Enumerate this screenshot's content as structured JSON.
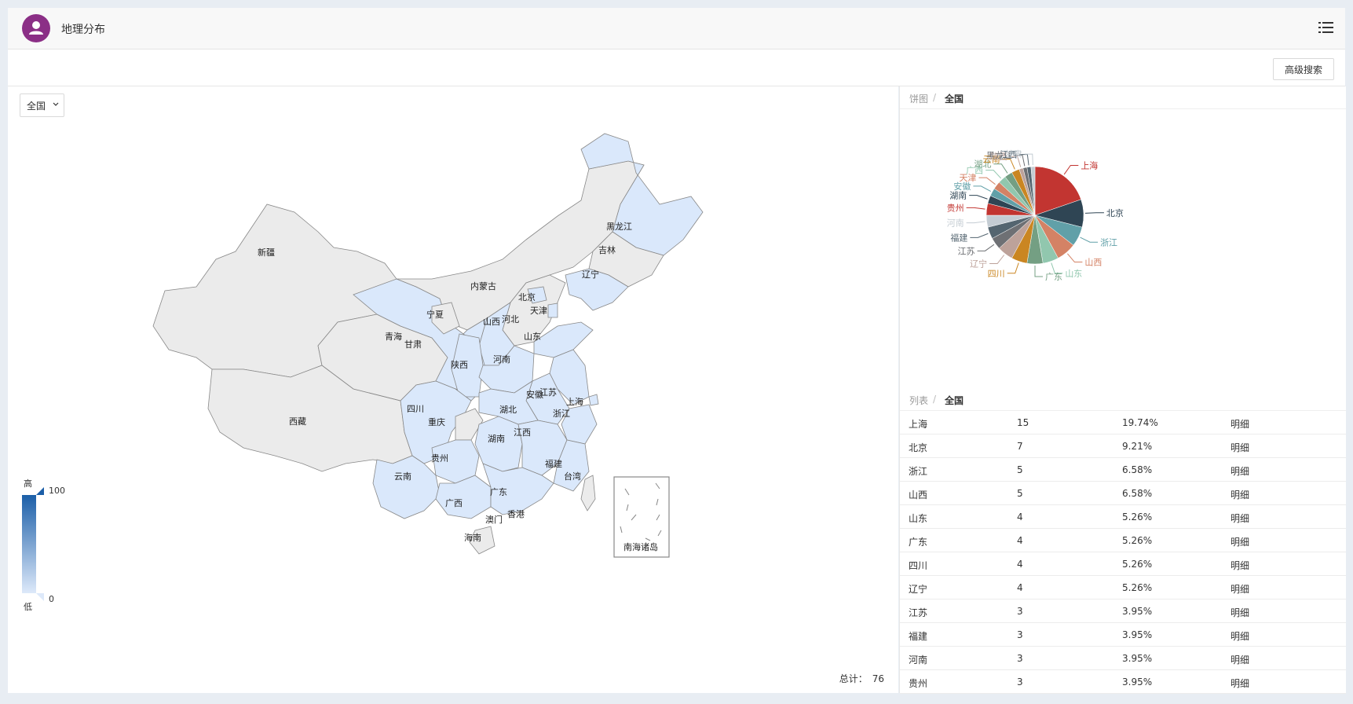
{
  "header": {
    "title": "地理分布",
    "avatar_icon": "user-icon",
    "menu_icon": "list-menu-icon",
    "avatar_color": "#8b2f86"
  },
  "toolbar": {
    "advanced_search": "高级搜索"
  },
  "map": {
    "region_value": "全国",
    "legend": {
      "high_label": "高",
      "low_label": "低",
      "max": "100",
      "min": "0",
      "color_high": "#1c5fa8",
      "color_low": "#dde9fa"
    },
    "total_label": "总计：",
    "total_value": "76",
    "highlight_color": "#dae8fb",
    "base_color": "#ebebeb",
    "provinces": [
      "新疆",
      "西藏",
      "青海",
      "甘肃",
      "宁夏",
      "内蒙古",
      "黑龙江",
      "吉林",
      "辽宁",
      "北京",
      "天津",
      "河北",
      "山西",
      "山东",
      "陕西",
      "河南",
      "江苏",
      "安徽",
      "上海",
      "浙江",
      "湖北",
      "四川",
      "重庆",
      "湖南",
      "江西",
      "福建",
      "台湾",
      "贵州",
      "云南",
      "广西",
      "广东",
      "香港",
      "澳门",
      "海南"
    ],
    "inset_label": "南海诸岛"
  },
  "pie": {
    "breadcrumb_root": "饼图",
    "breadcrumb_current": "全国"
  },
  "list": {
    "breadcrumb_root": "列表",
    "breadcrumb_current": "全国",
    "rows": [
      {
        "name": "上海",
        "count": "15",
        "pct": "19.74%",
        "action": "明细"
      },
      {
        "name": "北京",
        "count": "7",
        "pct": "9.21%",
        "action": "明细"
      },
      {
        "name": "浙江",
        "count": "5",
        "pct": "6.58%",
        "action": "明细"
      },
      {
        "name": "山西",
        "count": "5",
        "pct": "6.58%",
        "action": "明细"
      },
      {
        "name": "山东",
        "count": "4",
        "pct": "5.26%",
        "action": "明细"
      },
      {
        "name": "广东",
        "count": "4",
        "pct": "5.26%",
        "action": "明细"
      },
      {
        "name": "四川",
        "count": "4",
        "pct": "5.26%",
        "action": "明细"
      },
      {
        "name": "辽宁",
        "count": "4",
        "pct": "5.26%",
        "action": "明细"
      },
      {
        "name": "江苏",
        "count": "3",
        "pct": "3.95%",
        "action": "明细"
      },
      {
        "name": "福建",
        "count": "3",
        "pct": "3.95%",
        "action": "明细"
      },
      {
        "name": "河南",
        "count": "3",
        "pct": "3.95%",
        "action": "明细"
      },
      {
        "name": "贵州",
        "count": "3",
        "pct": "3.95%",
        "action": "明细"
      }
    ]
  },
  "chart_data": {
    "type": "pie",
    "categories": [
      "上海",
      "北京",
      "浙江",
      "山西",
      "山东",
      "广东",
      "四川",
      "辽宁",
      "江苏",
      "福建",
      "河南",
      "贵州",
      "湖南",
      "安徽",
      "天津",
      "广西",
      "湖北",
      "云南",
      "陕西",
      "黑龙江",
      "江西",
      "甘肃"
    ],
    "values": [
      15,
      7,
      5,
      5,
      4,
      4,
      4,
      4,
      3,
      3,
      3,
      3,
      2,
      2,
      2,
      2,
      2,
      2,
      1,
      1,
      1,
      1
    ],
    "colors": [
      "#c23531",
      "#2f4554",
      "#61a0a8",
      "#d48265",
      "#91c7ae",
      "#749f83",
      "#ca8622",
      "#bda29a",
      "#6e7074",
      "#546570",
      "#c4ccd3",
      "#c23531",
      "#2f4554",
      "#61a0a8",
      "#d48265",
      "#91c7ae",
      "#749f83",
      "#ca8622",
      "#bda29a",
      "#6e7074",
      "#546570",
      "#c4ccd3"
    ]
  }
}
